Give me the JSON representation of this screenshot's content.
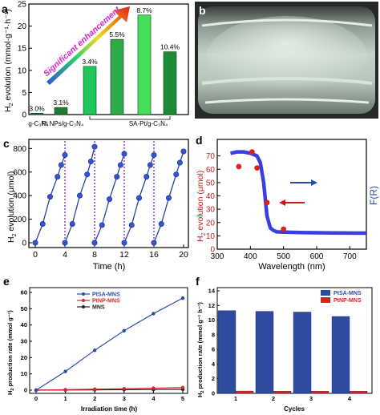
{
  "panel_letters": {
    "a": "a",
    "b": "b",
    "c": "c",
    "d": "d",
    "e": "e",
    "f": "f"
  },
  "arrow_text": "Significant enhancement",
  "chart_data": [
    {
      "panel": "a",
      "type": "bar",
      "ylabel_main": "H",
      "ylabel_sub": "2",
      "ylabel_rest": " evolution (mmol·g⁻¹·h⁻¹)",
      "ylim": [
        0,
        25
      ],
      "yticks": [
        "0",
        "5",
        "10",
        "15",
        "20",
        "25"
      ],
      "groups": [
        "g-C₃N₄",
        "Pt NPs/g-C₃N₄",
        "SA-Pt/g-C₃N₄"
      ],
      "values": [
        0.3,
        1.6,
        10.9,
        17.0,
        22.5,
        14.2
      ],
      "labels": [
        "3.0%",
        "3.1%",
        "3.4%",
        "5.5%",
        "8.7%",
        "10.4%"
      ],
      "colors": [
        "#1f7a32",
        "#1f7a32",
        "#22c55a",
        "#2eaa47",
        "#44e05c",
        "#1d8a38"
      ]
    },
    {
      "panel": "c",
      "type": "line",
      "xlabel": "Time (h)",
      "ylabel_main": "H",
      "ylabel_sub": "2",
      "ylabel_rest": " evolution (μmol)",
      "xlim": [
        0,
        20
      ],
      "ylim": [
        0,
        850
      ],
      "xticks": [
        "0",
        "4",
        "8",
        "12",
        "16",
        "20"
      ],
      "yticks": [
        "0",
        "200",
        "400",
        "600",
        "800"
      ],
      "cycle_breaks": [
        4,
        8,
        12,
        16
      ],
      "cycles": [
        {
          "x": [
            0,
            1,
            2,
            3,
            3.5,
            4
          ],
          "y": [
            0,
            160,
            390,
            560,
            660,
            745
          ]
        },
        {
          "x": [
            4,
            5,
            6,
            7,
            7.5,
            8
          ],
          "y": [
            0,
            160,
            400,
            580,
            690,
            815
          ]
        },
        {
          "x": [
            8,
            9,
            10,
            11,
            11.5,
            12
          ],
          "y": [
            0,
            150,
            370,
            560,
            660,
            755
          ]
        },
        {
          "x": [
            12,
            13,
            14,
            15,
            15.5,
            16
          ],
          "y": [
            0,
            150,
            380,
            560,
            660,
            745
          ]
        },
        {
          "x": [
            16,
            17,
            18,
            19,
            19.5,
            20
          ],
          "y": [
            0,
            160,
            380,
            580,
            680,
            775
          ]
        }
      ]
    },
    {
      "panel": "d",
      "type": "scatter",
      "xlabel": "Wavelength (nm)",
      "ylabel_main": "H",
      "ylabel_sub": "2",
      "ylabel_rest": " evolution (μmol)",
      "ylabel_right": "F(R)",
      "xlim": [
        300,
        750
      ],
      "ylim": [
        0,
        80
      ],
      "xticks": [
        "300",
        "400",
        "500",
        "600",
        "700"
      ],
      "yticks": [
        "0",
        "10",
        "20",
        "30",
        "40",
        "50",
        "60",
        "70"
      ],
      "points": [
        {
          "x": 365,
          "y": 62
        },
        {
          "x": 405,
          "y": 73
        },
        {
          "x": 420,
          "y": 61
        },
        {
          "x": 450,
          "y": 35
        },
        {
          "x": 500,
          "y": 15
        }
      ],
      "absorption": {
        "x": [
          340,
          360,
          380,
          400,
          420,
          430,
          440,
          450,
          460,
          470,
          480,
          500,
          550,
          600,
          650,
          700,
          750
        ],
        "y": [
          72,
          73,
          73,
          72,
          70,
          65,
          50,
          25,
          16,
          14,
          13,
          12.8,
          12.5,
          12.3,
          12.2,
          12.1,
          12
        ]
      }
    },
    {
      "panel": "e",
      "type": "line",
      "xlabel": "Irradiation time (h)",
      "ylabel_main": "H",
      "ylabel_sub": "2",
      "ylabel_rest": " production rate (mmol g⁻¹)",
      "xlim": [
        0,
        5
      ],
      "ylim": [
        0,
        60
      ],
      "xticks": [
        "0",
        "1",
        "2",
        "3",
        "4",
        "5"
      ],
      "yticks": [
        "0",
        "10",
        "20",
        "30",
        "40",
        "50",
        "60"
      ],
      "series": [
        {
          "name": "PtSA-MNS",
          "color": "#2b4aa8",
          "x": [
            0,
            1,
            2,
            3,
            4,
            5
          ],
          "y": [
            0,
            11.5,
            24.5,
            36.5,
            47,
            56.5
          ]
        },
        {
          "name": "PtNP-MNS",
          "color": "#d22b2b",
          "x": [
            0,
            1,
            2,
            3,
            4,
            5
          ],
          "y": [
            0,
            0.3,
            0.6,
            0.9,
            1.2,
            1.6
          ]
        },
        {
          "name": "MNS",
          "color": "#222222",
          "x": [
            0,
            1,
            2,
            3,
            4,
            5
          ],
          "y": [
            0,
            0.1,
            0.2,
            0.3,
            0.4,
            0.5
          ]
        }
      ]
    },
    {
      "panel": "f",
      "type": "bar",
      "xlabel": "Cycles",
      "ylabel_main": "H",
      "ylabel_sub": "2",
      "ylabel_rest": " production rate (mmol g⁻¹ h⁻¹)",
      "ylim": [
        0,
        14
      ],
      "yticks": [
        "0",
        "2",
        "4",
        "6",
        "8",
        "10",
        "12",
        "14"
      ],
      "categories": [
        "1",
        "2",
        "3",
        "4"
      ],
      "series": [
        {
          "name": "PtSA-MNS",
          "color": "#2f4b9e",
          "values": [
            11.3,
            11.2,
            11.1,
            10.5
          ]
        },
        {
          "name": "PtNP-MNS",
          "color": "#e02020",
          "values": [
            0.32,
            0.3,
            0.3,
            0.3
          ]
        }
      ]
    }
  ],
  "panel_b": {
    "colors": {
      "bg": "#2a2e2a",
      "glass": "#a8b8b0",
      "liquid": "#c8d6cc"
    }
  }
}
